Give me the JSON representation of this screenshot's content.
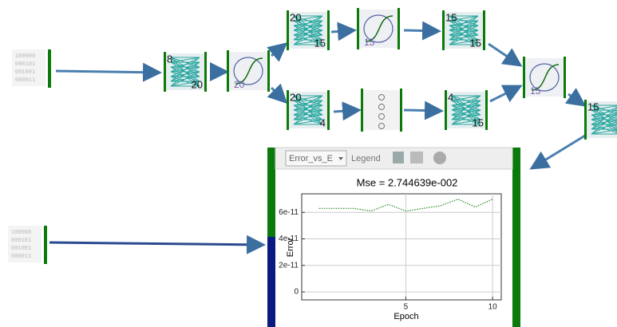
{
  "inputs": [
    {
      "lines": [
        "100000",
        "000101",
        "001001",
        "000011"
      ]
    },
    {
      "lines": [
        "100000",
        "000101",
        "001001",
        "000011"
      ]
    }
  ],
  "layers": [
    {
      "in": "8",
      "out": "20"
    },
    {
      "in": "20",
      "out": "15"
    },
    {
      "in": "15",
      "out": "15"
    },
    {
      "in": "20",
      "out": "4"
    },
    {
      "in": "4",
      "out": "15"
    },
    {
      "in": "15"
    }
  ],
  "activations": [
    "20",
    "15",
    "15"
  ],
  "toolbar": {
    "dropdown": "Error_vs_E",
    "legend": "Legend"
  },
  "chart_data": {
    "type": "line",
    "title": "Mse = 2.744639e-002",
    "x_label": "Epoch",
    "y_label": "Error",
    "x": [
      0,
      1,
      2,
      3,
      4,
      5,
      6,
      7,
      8,
      9,
      10
    ],
    "series": [
      {
        "name": "Error",
        "color": "#2a8a2a",
        "values": [
          6.3e-11,
          6.3e-11,
          6.3e-11,
          6.1e-11,
          6.6e-11,
          6.1e-11,
          6.3e-11,
          6.5e-11,
          7e-11,
          6.4e-11,
          7e-11
        ]
      }
    ],
    "xlim": [
      -1,
      10.5
    ],
    "xticks": [
      5,
      10
    ],
    "ylim": [
      -6e-12,
      7.4e-11
    ],
    "yticks": [
      0,
      2e-11,
      4e-11,
      6e-11
    ],
    "grid": true
  }
}
